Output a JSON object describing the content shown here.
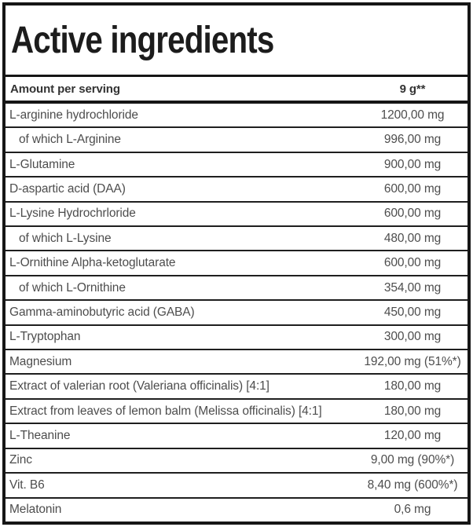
{
  "title": "Active ingredients",
  "table": {
    "header": {
      "label": "Amount per serving",
      "value": "9 g**"
    },
    "rows": [
      {
        "label": "L-arginine hydrochloride",
        "value": "1200,00 mg",
        "indent": false
      },
      {
        "label": "of which L-Arginine",
        "value": "996,00 mg",
        "indent": true
      },
      {
        "label": "L-Glutamine",
        "value": "900,00 mg",
        "indent": false
      },
      {
        "label": "D-aspartic acid (DAA)",
        "value": "600,00 mg",
        "indent": false
      },
      {
        "label": "L-Lysine Hydrochrloride",
        "value": "600,00 mg",
        "indent": false
      },
      {
        "label": "of which L-Lysine",
        "value": "480,00 mg",
        "indent": true
      },
      {
        "label": "L-Ornithine Alpha-ketoglutarate",
        "value": "600,00 mg",
        "indent": false
      },
      {
        "label": "of which L-Ornithine",
        "value": "354,00 mg",
        "indent": true
      },
      {
        "label": "Gamma-aminobutyric acid (GABA)",
        "value": "450,00 mg",
        "indent": false
      },
      {
        "label": "L-Tryptophan",
        "value": "300,00 mg",
        "indent": false
      },
      {
        "label": "Magnesium",
        "value": "192,00 mg (51%*)",
        "indent": false
      },
      {
        "label": "Extract of valerian root (Valeriana officinalis) [4:1]",
        "value": "180,00 mg",
        "indent": false
      },
      {
        "label": "Extract from leaves of lemon balm (Melissa officinalis) [4:1]",
        "value": "180,00 mg",
        "indent": false
      },
      {
        "label": "L-Theanine",
        "value": "120,00 mg",
        "indent": false
      },
      {
        "label": "Zinc",
        "value": "9,00 mg (90%*)",
        "indent": false
      },
      {
        "label": "Vit. B6",
        "value": "8,40 mg (600%*)",
        "indent": false
      },
      {
        "label": "Melatonin",
        "value": "0,6 mg",
        "indent": false
      }
    ]
  },
  "colors": {
    "border": "#161616",
    "separator": "#1f1f1f",
    "title_text": "#1c1c1c",
    "header_text": "#333333",
    "row_text": "#4d4d4d",
    "background": "#ffffff"
  }
}
